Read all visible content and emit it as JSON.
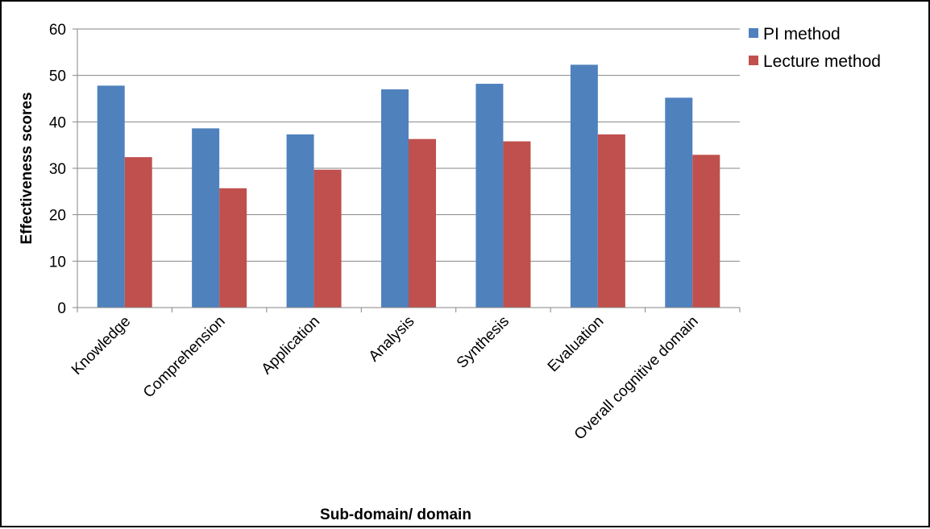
{
  "chart_data": {
    "type": "bar",
    "categories": [
      "Knowledge",
      "Comprehension",
      "Application",
      "Analysis",
      "Synthesis",
      "Evaluation",
      "Overall cognitive domain"
    ],
    "series": [
      {
        "name": "PI method",
        "color": "#4f81bd",
        "values": [
          47.8,
          38.6,
          37.3,
          47.0,
          48.2,
          52.3,
          45.2
        ]
      },
      {
        "name": "Lecture method",
        "color": "#c0504d",
        "values": [
          32.4,
          25.7,
          29.7,
          36.3,
          35.8,
          37.3,
          32.9
        ]
      }
    ],
    "xlabel": "Sub-domain/ domain",
    "ylabel": "Effectiveness scores",
    "ylim": [
      0,
      60
    ],
    "yticks": [
      "0",
      "10",
      "20",
      "30",
      "40",
      "50",
      "60"
    ],
    "grid": true,
    "legend_position": "top-right"
  }
}
